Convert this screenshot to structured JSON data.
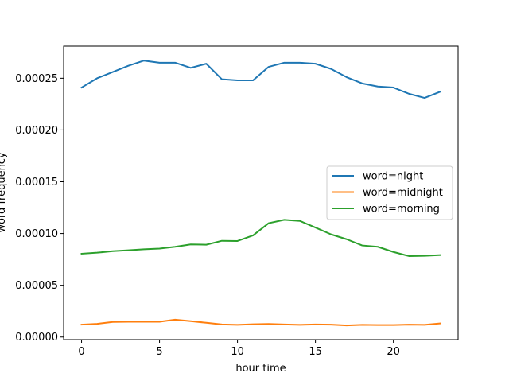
{
  "chart_data": {
    "type": "line",
    "title": "",
    "xlabel": "hour time",
    "ylabel": "word frequency",
    "xlim": [
      -1.15,
      24.15
    ],
    "ylim": [
      -2.5e-06,
      0.000281
    ],
    "xticks": [
      0,
      5,
      10,
      15,
      20
    ],
    "xtick_labels": [
      "0",
      "5",
      "10",
      "15",
      "20"
    ],
    "yticks": [
      0,
      5e-05,
      0.0001,
      0.00015,
      0.0002,
      0.00025
    ],
    "ytick_labels": [
      "0.00000",
      "0.00005",
      "0.00010",
      "0.00015",
      "0.00020",
      "0.00025"
    ],
    "grid": false,
    "legend_position": "center-right",
    "x": [
      0,
      1,
      2,
      3,
      4,
      5,
      6,
      7,
      8,
      9,
      10,
      11,
      12,
      13,
      14,
      15,
      16,
      17,
      18,
      19,
      20,
      21,
      22,
      23
    ],
    "series": [
      {
        "name": "word=night",
        "color": "#1f77b4",
        "values": [
          0.000241,
          0.00025,
          0.000256,
          0.000262,
          0.000267,
          0.000265,
          0.000265,
          0.00026,
          0.000264,
          0.000249,
          0.000248,
          0.000248,
          0.000261,
          0.000265,
          0.000265,
          0.000264,
          0.000259,
          0.000251,
          0.000245,
          0.000242,
          0.000241,
          0.000235,
          0.000231,
          0.000237
        ]
      },
      {
        "name": "word=midnight",
        "color": "#ff7f0e",
        "values": [
          1.2e-05,
          1.28e-05,
          1.46e-05,
          1.48e-05,
          1.48e-05,
          1.48e-05,
          1.68e-05,
          1.54e-05,
          1.38e-05,
          1.22e-05,
          1.18e-05,
          1.24e-05,
          1.27e-05,
          1.22e-05,
          1.18e-05,
          1.22e-05,
          1.2e-05,
          1.12e-05,
          1.18e-05,
          1.16e-05,
          1.16e-05,
          1.2e-05,
          1.18e-05,
          1.32e-05
        ]
      },
      {
        "name": "word=morning",
        "color": "#2ca02c",
        "values": [
          8.05e-05,
          8.15e-05,
          8.3e-05,
          8.38e-05,
          8.48e-05,
          8.55e-05,
          8.72e-05,
          8.95e-05,
          8.92e-05,
          9.3e-05,
          9.28e-05,
          9.82e-05,
          0.00011,
          0.0001132,
          0.0001122,
          0.0001058,
          9.92e-05,
          9.45e-05,
          8.85e-05,
          8.72e-05,
          8.22e-05,
          7.82e-05,
          7.85e-05,
          7.92e-05
        ]
      }
    ]
  }
}
